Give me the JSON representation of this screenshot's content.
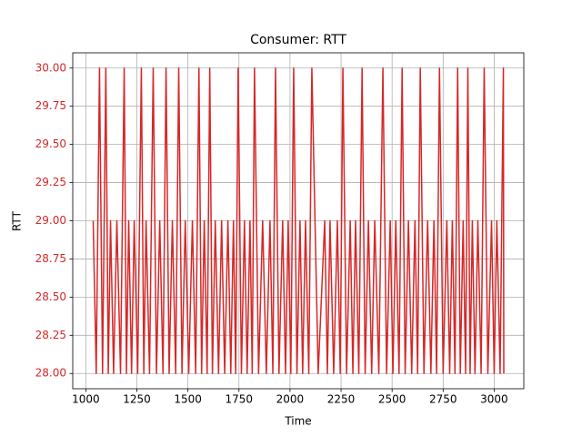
{
  "chart_data": {
    "type": "line",
    "title": "Consumer: RTT",
    "xlabel": "Time",
    "ylabel": "RTT",
    "x": [
      1036,
      1051,
      1067,
      1082,
      1098,
      1110,
      1121,
      1136,
      1152,
      1170,
      1188,
      1199,
      1210,
      1224,
      1237,
      1254,
      1272,
      1284,
      1295,
      1312,
      1330,
      1346,
      1362,
      1378,
      1393,
      1408,
      1424,
      1440,
      1455,
      1471,
      1487,
      1504,
      1522,
      1538,
      1554,
      1567,
      1580,
      1594,
      1607,
      1620,
      1634,
      1650,
      1665,
      1680,
      1696,
      1710,
      1723,
      1734,
      1746,
      1762,
      1777,
      1790,
      1804,
      1815,
      1826,
      1846,
      1866,
      1884,
      1902,
      1916,
      1929,
      1946,
      1964,
      1978,
      1991,
      2004,
      2018,
      2034,
      2049,
      2062,
      2076,
      2092,
      2107,
      2138,
      2170,
      2183,
      2196,
      2214,
      2232,
      2246,
      2259,
      2277,
      2295,
      2308,
      2321,
      2337,
      2353,
      2368,
      2384,
      2400,
      2415,
      2435,
      2455,
      2473,
      2491,
      2504,
      2518,
      2534,
      2549,
      2564,
      2580,
      2596,
      2612,
      2625,
      2638,
      2656,
      2674,
      2690,
      2705,
      2718,
      2732,
      2750,
      2768,
      2782,
      2795,
      2808,
      2821,
      2834,
      2848,
      2860,
      2871,
      2882,
      2893,
      2906,
      2920,
      2936,
      2951,
      2969,
      2987,
      3000,
      3013,
      3029,
      3045,
      3047
    ],
    "series": [
      {
        "name": "RTT",
        "color": "#d62728",
        "values": [
          29,
          28,
          30,
          28,
          30,
          28,
          29,
          28,
          29,
          28,
          30,
          28,
          29,
          28,
          29,
          28,
          30,
          28,
          29,
          28,
          30,
          28,
          29,
          28,
          30,
          28,
          29,
          28,
          30,
          28,
          29,
          28,
          29,
          28,
          30,
          28,
          29,
          28,
          30,
          28,
          29,
          28,
          29,
          28,
          29,
          28,
          29,
          28,
          30,
          28,
          29,
          28,
          29,
          28,
          30,
          28,
          29,
          28,
          29,
          28,
          30,
          28,
          29,
          28,
          29,
          28,
          30,
          28,
          29,
          28,
          29,
          28,
          30,
          28,
          29,
          28,
          29,
          28,
          29,
          28,
          30,
          28,
          29,
          28,
          29,
          28,
          30,
          28,
          29,
          28,
          29,
          28,
          30,
          28,
          29,
          28,
          29,
          28,
          30,
          28,
          29,
          28,
          29,
          28,
          30,
          28,
          29,
          28,
          29,
          28,
          30,
          28,
          29,
          28,
          29,
          28,
          30,
          28,
          29,
          28,
          30,
          28,
          29,
          28,
          29,
          28,
          30,
          28,
          29,
          28,
          29,
          28,
          30,
          28
        ]
      }
    ],
    "xlim": [
      936,
      3145
    ],
    "ylim": [
      27.9,
      30.1
    ],
    "xticks": [
      1000,
      1250,
      1500,
      1750,
      2000,
      2250,
      2500,
      2750,
      3000
    ],
    "yticks": [
      {
        "value": 28,
        "label": "28.00"
      },
      {
        "value": 28.25,
        "label": "28.25"
      },
      {
        "value": 28.5,
        "label": "28.50"
      },
      {
        "value": 28.75,
        "label": "28.75"
      },
      {
        "value": 29,
        "label": "29.00"
      },
      {
        "value": 29.25,
        "label": "29.25"
      },
      {
        "value": 29.5,
        "label": "29.50"
      },
      {
        "value": 29.75,
        "label": "29.75"
      },
      {
        "value": 30,
        "label": "30.00"
      }
    ],
    "grid": true,
    "ytick_label_color": "#d62728"
  }
}
